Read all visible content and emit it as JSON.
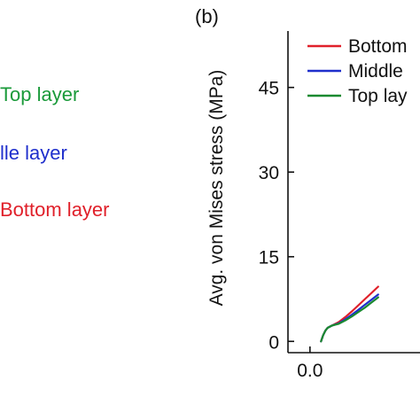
{
  "left_panel": {
    "labels": [
      {
        "text": "Top layer",
        "color": "#1a9a3a"
      },
      {
        "text": "lle layer",
        "color": "#1f2fcc"
      },
      {
        "text": "Bottom layer",
        "color": "#e0202a"
      }
    ]
  },
  "chart_data": {
    "type": "line",
    "panel_label": "(b)",
    "title": "",
    "xlabel": "",
    "ylabel": "Avg. von Mises stress (MPa)",
    "xlim": [
      -0.1,
      0.5
    ],
    "ylim": [
      -2,
      55
    ],
    "x_ticks": [
      0.0
    ],
    "x_tick_labels": [
      "0.0"
    ],
    "y_ticks": [
      0,
      15,
      30,
      45
    ],
    "y_tick_labels": [
      "0",
      "15",
      "30",
      "45"
    ],
    "grid": false,
    "legend_position": "top-right",
    "series": [
      {
        "name": "Bottom",
        "color": "#e0202a",
        "x": [
          0.05,
          0.06,
          0.07,
          0.08,
          0.1,
          0.13,
          0.16,
          0.19,
          0.22,
          0.25,
          0.28,
          0.31
        ],
        "y": [
          0.0,
          1.1,
          1.9,
          2.4,
          2.8,
          3.4,
          4.3,
          5.3,
          6.4,
          7.5,
          8.6,
          9.7
        ]
      },
      {
        "name": "Middle",
        "color": "#1f2fcc",
        "x": [
          0.05,
          0.06,
          0.07,
          0.08,
          0.1,
          0.13,
          0.16,
          0.19,
          0.22,
          0.25,
          0.28,
          0.31
        ],
        "y": [
          0.0,
          1.1,
          1.9,
          2.4,
          2.8,
          3.2,
          3.9,
          4.7,
          5.6,
          6.5,
          7.4,
          8.3
        ]
      },
      {
        "name": "Top lay",
        "color": "#1a8a30",
        "x": [
          0.05,
          0.06,
          0.07,
          0.08,
          0.1,
          0.13,
          0.16,
          0.19,
          0.22,
          0.25,
          0.28,
          0.31
        ],
        "y": [
          0.0,
          1.1,
          1.9,
          2.4,
          2.8,
          3.1,
          3.7,
          4.4,
          5.2,
          6.0,
          6.9,
          7.8
        ]
      }
    ]
  }
}
